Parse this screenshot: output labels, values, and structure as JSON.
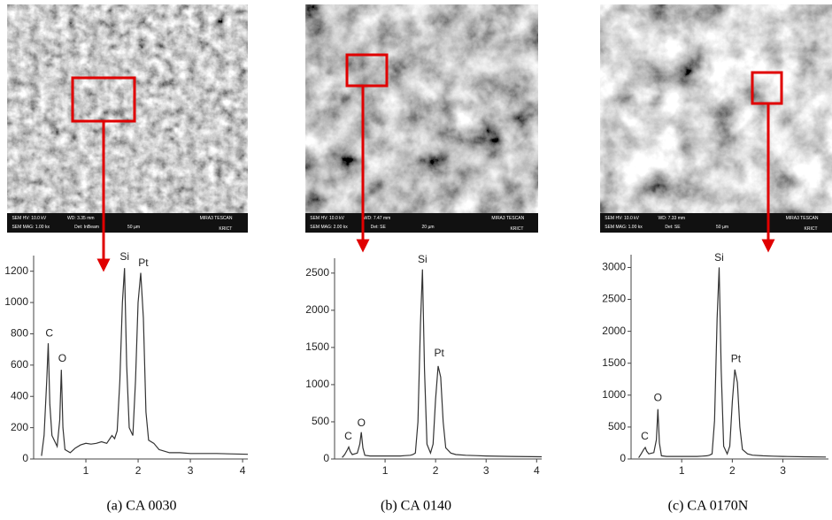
{
  "chart_data": [
    {
      "type": "line",
      "title": "(a)  CA  0030",
      "x": [
        0.15,
        0.2,
        0.25,
        0.28,
        0.31,
        0.35,
        0.45,
        0.5,
        0.53,
        0.56,
        0.6,
        0.7,
        0.8,
        0.9,
        1.0,
        1.1,
        1.2,
        1.3,
        1.4,
        1.5,
        1.55,
        1.6,
        1.65,
        1.7,
        1.74,
        1.78,
        1.83,
        1.9,
        1.95,
        2.0,
        2.05,
        2.1,
        2.15,
        2.2,
        2.3,
        2.4,
        2.6,
        2.8,
        3.0,
        3.5,
        4.1
      ],
      "values": [
        20,
        150,
        500,
        740,
        350,
        150,
        80,
        250,
        570,
        200,
        60,
        40,
        70,
        90,
        100,
        95,
        100,
        110,
        100,
        150,
        130,
        180,
        500,
        1000,
        1220,
        600,
        200,
        150,
        500,
        1000,
        1190,
        900,
        300,
        120,
        100,
        60,
        40,
        40,
        35,
        35,
        30
      ],
      "color": "#333333",
      "xlim": [
        0,
        4.1
      ],
      "xticks": [
        1,
        2,
        3,
        4
      ],
      "ylim": [
        0,
        1300
      ],
      "yticks": [
        0,
        200,
        400,
        600,
        800,
        1000,
        1200
      ],
      "annotations": [
        {
          "text": "C",
          "x": 0.3,
          "y": 800
        },
        {
          "text": "O",
          "x": 0.55,
          "y": 640
        },
        {
          "text": "Si",
          "x": 1.74,
          "y": 1290
        },
        {
          "text": "Pt",
          "x": 2.1,
          "y": 1250
        }
      ]
    },
    {
      "type": "line",
      "title": "(b)  CA  0140",
      "x": [
        0.15,
        0.2,
        0.25,
        0.28,
        0.31,
        0.35,
        0.45,
        0.5,
        0.53,
        0.56,
        0.6,
        0.7,
        0.8,
        0.9,
        1.0,
        1.1,
        1.2,
        1.3,
        1.4,
        1.5,
        1.55,
        1.6,
        1.65,
        1.7,
        1.74,
        1.78,
        1.83,
        1.9,
        1.95,
        2.0,
        2.05,
        2.1,
        2.15,
        2.2,
        2.3,
        2.4,
        2.6,
        2.8,
        3.0,
        3.5,
        4.1
      ],
      "values": [
        20,
        60,
        120,
        160,
        100,
        60,
        80,
        200,
        360,
        150,
        50,
        40,
        40,
        40,
        40,
        40,
        40,
        40,
        45,
        50,
        60,
        80,
        500,
        1800,
        2550,
        1200,
        200,
        80,
        200,
        800,
        1250,
        1100,
        500,
        150,
        80,
        60,
        50,
        45,
        40,
        35,
        30
      ],
      "color": "#333333",
      "xlim": [
        0,
        4.1
      ],
      "xticks": [
        1,
        2,
        3,
        4
      ],
      "ylim": [
        0,
        2700
      ],
      "yticks": [
        0,
        500,
        1000,
        1500,
        2000,
        2500
      ],
      "annotations": [
        {
          "text": "C",
          "x": 0.27,
          "y": 300
        },
        {
          "text": "O",
          "x": 0.53,
          "y": 480
        },
        {
          "text": "Si",
          "x": 1.74,
          "y": 2680
        },
        {
          "text": "Pt",
          "x": 2.07,
          "y": 1420
        }
      ]
    },
    {
      "type": "line",
      "title": "(c)  CA  0170N",
      "x": [
        0.15,
        0.2,
        0.25,
        0.28,
        0.31,
        0.35,
        0.45,
        0.5,
        0.53,
        0.56,
        0.6,
        0.7,
        0.8,
        0.9,
        1.0,
        1.1,
        1.2,
        1.3,
        1.4,
        1.5,
        1.55,
        1.6,
        1.65,
        1.7,
        1.74,
        1.78,
        1.83,
        1.9,
        1.95,
        2.0,
        2.05,
        2.1,
        2.15,
        2.2,
        2.3,
        2.4,
        2.6,
        2.8,
        3.0,
        3.4,
        3.85
      ],
      "values": [
        20,
        80,
        150,
        180,
        120,
        80,
        100,
        300,
        780,
        250,
        50,
        40,
        40,
        40,
        40,
        40,
        40,
        40,
        45,
        50,
        60,
        80,
        600,
        2200,
        3000,
        1400,
        200,
        80,
        200,
        900,
        1400,
        1200,
        500,
        150,
        80,
        60,
        50,
        45,
        40,
        35,
        30
      ],
      "color": "#333333",
      "xlim": [
        0,
        3.9
      ],
      "xticks": [
        1,
        2,
        3
      ],
      "ylim": [
        0,
        3200
      ],
      "yticks": [
        0,
        500,
        1000,
        1500,
        2000,
        2500,
        3000
      ],
      "annotations": [
        {
          "text": "C",
          "x": 0.27,
          "y": 350
        },
        {
          "text": "O",
          "x": 0.53,
          "y": 950
        },
        {
          "text": "Si",
          "x": 1.74,
          "y": 3150
        },
        {
          "text": "Pt",
          "x": 2.07,
          "y": 1560
        }
      ]
    }
  ],
  "sem_images": [
    {
      "labels": [
        "SEM HV: 10.0 kV",
        "WD: 3.35 mm",
        "MIRA3 TESCAN",
        "SEM MAG: 1.00 kx",
        "Det: InBeam",
        "50 µm",
        "KRICT"
      ]
    },
    {
      "labels": [
        "SEM HV: 10.0 kV",
        "WD: 7.47 mm",
        "MIRA3 TESCAN",
        "SEM MAG: 2.00 kx",
        "Det: SE",
        "20 µm",
        "KRICT"
      ]
    },
    {
      "labels": [
        "SEM HV: 10.0 kV",
        "WD: 7.33 mm",
        "MIRA3 TESCAN",
        "SEM MAG: 1.00 kx",
        "Det: SE",
        "50 µm",
        "KRICT"
      ]
    }
  ]
}
